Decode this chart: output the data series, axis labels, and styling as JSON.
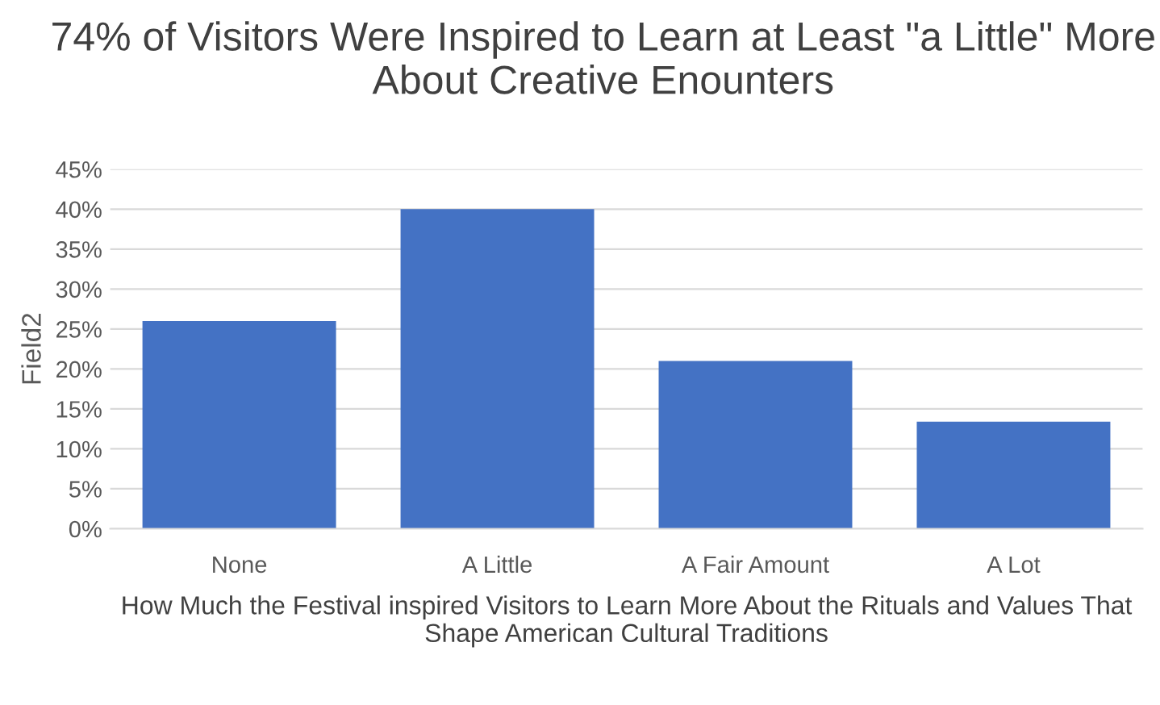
{
  "chart_data": {
    "type": "bar",
    "title": "74% of Visitors Were Inspired to Learn at Least \"a Little\" More About Creative Enounters",
    "xlabel": "How Much the Festival inspired Visitors to Learn More About the Rituals and Values That Shape American Cultural Traditions",
    "ylabel": "Field2",
    "categories": [
      "None",
      "A Little",
      "A Fair Amount",
      "A Lot"
    ],
    "values": [
      26,
      40,
      21,
      13.4
    ],
    "color": "#4472c4",
    "ylim": [
      0,
      45
    ],
    "yticks": [
      {
        "value": 0,
        "label": "0%"
      },
      {
        "value": 5,
        "label": "5%"
      },
      {
        "value": 10,
        "label": "10%"
      },
      {
        "value": 15,
        "label": "15%"
      },
      {
        "value": 20,
        "label": "20%"
      },
      {
        "value": 25,
        "label": "25%"
      },
      {
        "value": 30,
        "label": "30%"
      },
      {
        "value": 35,
        "label": "35%"
      },
      {
        "value": 40,
        "label": "40%"
      },
      {
        "value": 45,
        "label": "45%"
      }
    ],
    "grid": "y",
    "legend": false
  }
}
